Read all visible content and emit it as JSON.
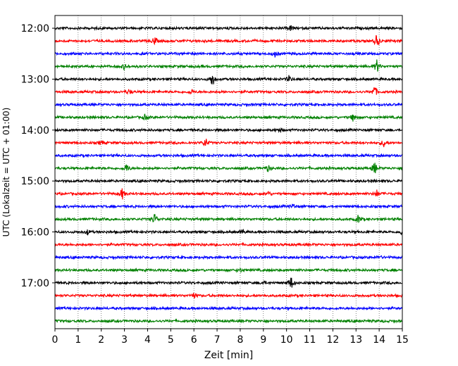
{
  "chart_data": {
    "type": "line",
    "subtype": "helicorder",
    "xlabel": "Zeit  [min]",
    "ylabel": "UTC (Lokalzeit = UTC + 01:00)",
    "xlim": [
      0,
      15
    ],
    "x_ticks": [
      "0",
      "1",
      "2",
      "3",
      "4",
      "5",
      "6",
      "7",
      "8",
      "9",
      "10",
      "11",
      "12",
      "13",
      "14",
      "15"
    ],
    "y_tick_labels": [
      "12:00",
      "13:00",
      "14:00",
      "15:00",
      "16:00",
      "17:00"
    ],
    "grid": "vertical dotted at each minute",
    "trace_colors": [
      "#000000",
      "#ff0000",
      "#0000ff",
      "#008000"
    ],
    "rows": [
      {
        "start": "12:00",
        "color": "#000000",
        "events": [
          [
            10.2,
            0.35
          ]
        ]
      },
      {
        "start": "12:15",
        "color": "#ff0000",
        "events": [
          [
            4.3,
            0.5
          ],
          [
            13.9,
            0.9
          ]
        ]
      },
      {
        "start": "12:30",
        "color": "#0000ff",
        "events": [
          [
            9.5,
            0.4
          ]
        ]
      },
      {
        "start": "12:45",
        "color": "#008000",
        "events": [
          [
            3.0,
            0.35
          ],
          [
            13.9,
            0.8
          ]
        ]
      },
      {
        "start": "13:00",
        "color": "#000000",
        "events": [
          [
            6.8,
            1.0
          ],
          [
            10.1,
            0.4
          ]
        ]
      },
      {
        "start": "13:15",
        "color": "#ff0000",
        "events": [
          [
            3.2,
            0.35
          ],
          [
            5.9,
            0.3
          ],
          [
            13.8,
            0.8
          ]
        ]
      },
      {
        "start": "13:30",
        "color": "#0000ff",
        "events": []
      },
      {
        "start": "13:45",
        "color": "#008000",
        "events": [
          [
            3.9,
            0.35
          ],
          [
            12.9,
            0.6
          ]
        ]
      },
      {
        "start": "14:00",
        "color": "#000000",
        "events": [
          [
            9.7,
            0.25
          ]
        ]
      },
      {
        "start": "14:15",
        "color": "#ff0000",
        "events": [
          [
            2.0,
            0.3
          ],
          [
            6.5,
            0.6
          ],
          [
            14.2,
            0.45
          ]
        ]
      },
      {
        "start": "14:30",
        "color": "#0000ff",
        "events": []
      },
      {
        "start": "14:45",
        "color": "#008000",
        "events": [
          [
            3.1,
            0.55
          ],
          [
            9.2,
            0.35
          ],
          [
            13.8,
            0.8
          ]
        ]
      },
      {
        "start": "15:00",
        "color": "#000000",
        "events": []
      },
      {
        "start": "15:15",
        "color": "#ff0000",
        "events": [
          [
            2.9,
            0.7
          ],
          [
            9.2,
            0.3
          ],
          [
            13.9,
            0.4
          ]
        ]
      },
      {
        "start": "15:30",
        "color": "#0000ff",
        "events": [
          [
            10.3,
            0.3
          ]
        ]
      },
      {
        "start": "15:45",
        "color": "#008000",
        "events": [
          [
            4.3,
            0.75
          ],
          [
            13.1,
            0.5
          ]
        ]
      },
      {
        "start": "16:00",
        "color": "#000000",
        "events": [
          [
            1.4,
            0.3
          ],
          [
            8.1,
            0.3
          ],
          [
            15.0,
            0.45
          ]
        ]
      },
      {
        "start": "16:15",
        "color": "#ff0000",
        "events": []
      },
      {
        "start": "16:30",
        "color": "#0000ff",
        "events": [
          [
            14.0,
            0.2
          ]
        ]
      },
      {
        "start": "16:45",
        "color": "#008000",
        "events": [
          [
            8.0,
            0.2
          ]
        ]
      },
      {
        "start": "17:00",
        "color": "#000000",
        "events": [
          [
            10.2,
            0.8
          ],
          [
            9.0,
            0.25
          ]
        ]
      },
      {
        "start": "17:15",
        "color": "#ff0000",
        "events": [
          [
            6.0,
            0.3
          ]
        ]
      },
      {
        "start": "17:30",
        "color": "#0000ff",
        "events": []
      },
      {
        "start": "17:45",
        "color": "#008000",
        "events": []
      }
    ]
  }
}
